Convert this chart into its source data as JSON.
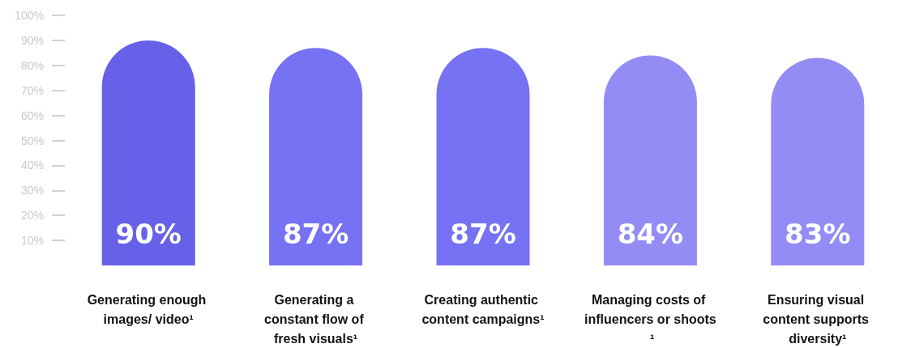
{
  "chart_data": {
    "type": "bar",
    "categories": [
      "Generating enough images/ video¹",
      "Generating a constant flow of fresh visuals¹",
      "Creating authentic content campaigns¹",
      "Managing costs of influencers or shoots ¹",
      "Ensuring visual content supports diversity¹"
    ],
    "values": [
      90,
      87,
      87,
      84,
      83
    ],
    "colors": [
      "#6661e8",
      "#7672f4",
      "#7672f4",
      "#938cf5",
      "#938cf5"
    ],
    "ylim": [
      0,
      100
    ],
    "yticks": [
      {
        "value": 10,
        "label": "10%"
      },
      {
        "value": 20,
        "label": "20%"
      },
      {
        "value": 30,
        "label": "30%"
      },
      {
        "value": 40,
        "label": "40%"
      },
      {
        "value": 50,
        "label": "50%"
      },
      {
        "value": 60,
        "label": "60%"
      },
      {
        "value": 70,
        "label": "70%"
      },
      {
        "value": 80,
        "label": "80%"
      },
      {
        "value": 90,
        "label": "90%"
      },
      {
        "value": 100,
        "label": "100%"
      }
    ],
    "value_labels": [
      "90%",
      "87%",
      "87%",
      "84%",
      "83%"
    ],
    "grid": false
  }
}
